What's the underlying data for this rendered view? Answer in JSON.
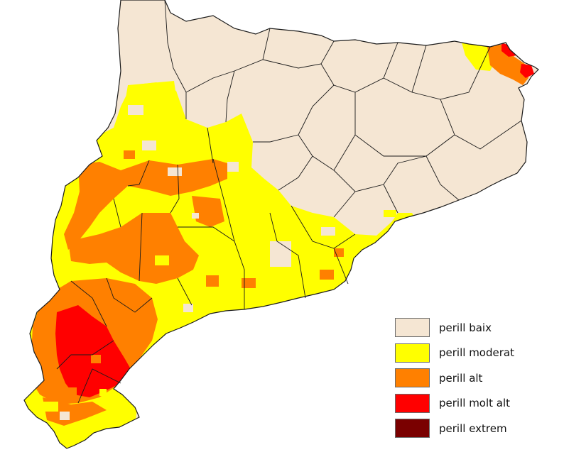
{
  "map": {
    "colors": {
      "baix": "#f5e6d3",
      "moderat": "#ffff00",
      "alt": "#ff8000",
      "molt_alt": "#ff0000",
      "extrem": "#7a0000",
      "border": "#1a1a1a"
    }
  },
  "legend": {
    "items": [
      {
        "label": "perill baix",
        "color": "#f5e6d3"
      },
      {
        "label": "perill moderat",
        "color": "#ffff00"
      },
      {
        "label": "perill alt",
        "color": "#ff8000"
      },
      {
        "label": "perill molt alt",
        "color": "#ff0000"
      },
      {
        "label": "perill extrem",
        "color": "#7a0000"
      }
    ]
  }
}
